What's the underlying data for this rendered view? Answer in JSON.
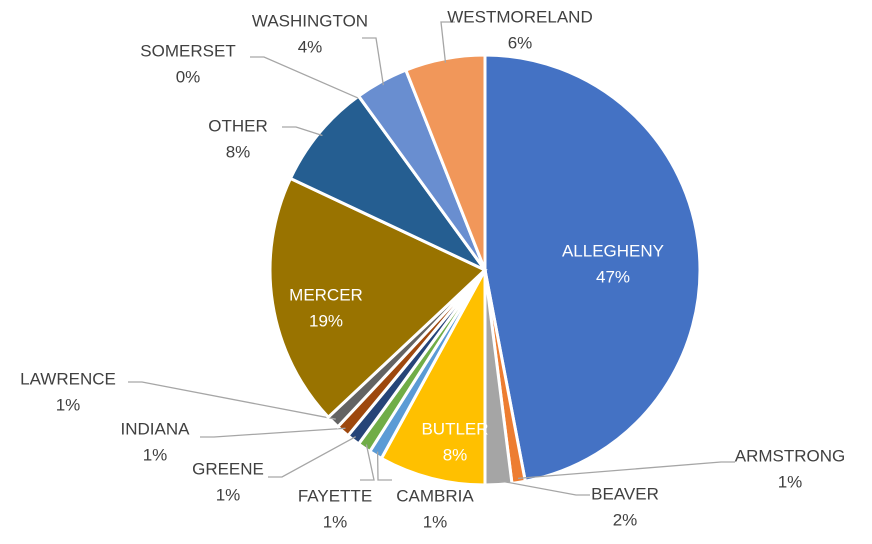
{
  "chart_data": {
    "type": "pie",
    "categories": [
      "ALLEGHENY",
      "ARMSTRONG",
      "BEAVER",
      "BUTLER",
      "CAMBRIA",
      "FAYETTE",
      "GREENE",
      "INDIANA",
      "LAWRENCE",
      "MERCER",
      "OTHER",
      "SOMERSET",
      "WASHINGTON",
      "WESTMORELAND"
    ],
    "values": [
      47,
      1,
      2,
      8,
      1,
      1,
      1,
      1,
      1,
      19,
      8,
      0,
      4,
      6
    ],
    "value_labels": [
      "47%",
      "1%",
      "2%",
      "8%",
      "1%",
      "1%",
      "1%",
      "1%",
      "1%",
      "19%",
      "8%",
      "0%",
      "4%",
      "6%"
    ],
    "colors": [
      "#4472c4",
      "#ed7d31",
      "#a5a5a5",
      "#ffc000",
      "#5b9bd5",
      "#70ad47",
      "#264478",
      "#9e480e",
      "#636363",
      "#997300",
      "#255e91",
      "#43682b",
      "#698ed0",
      "#f1975a"
    ]
  }
}
